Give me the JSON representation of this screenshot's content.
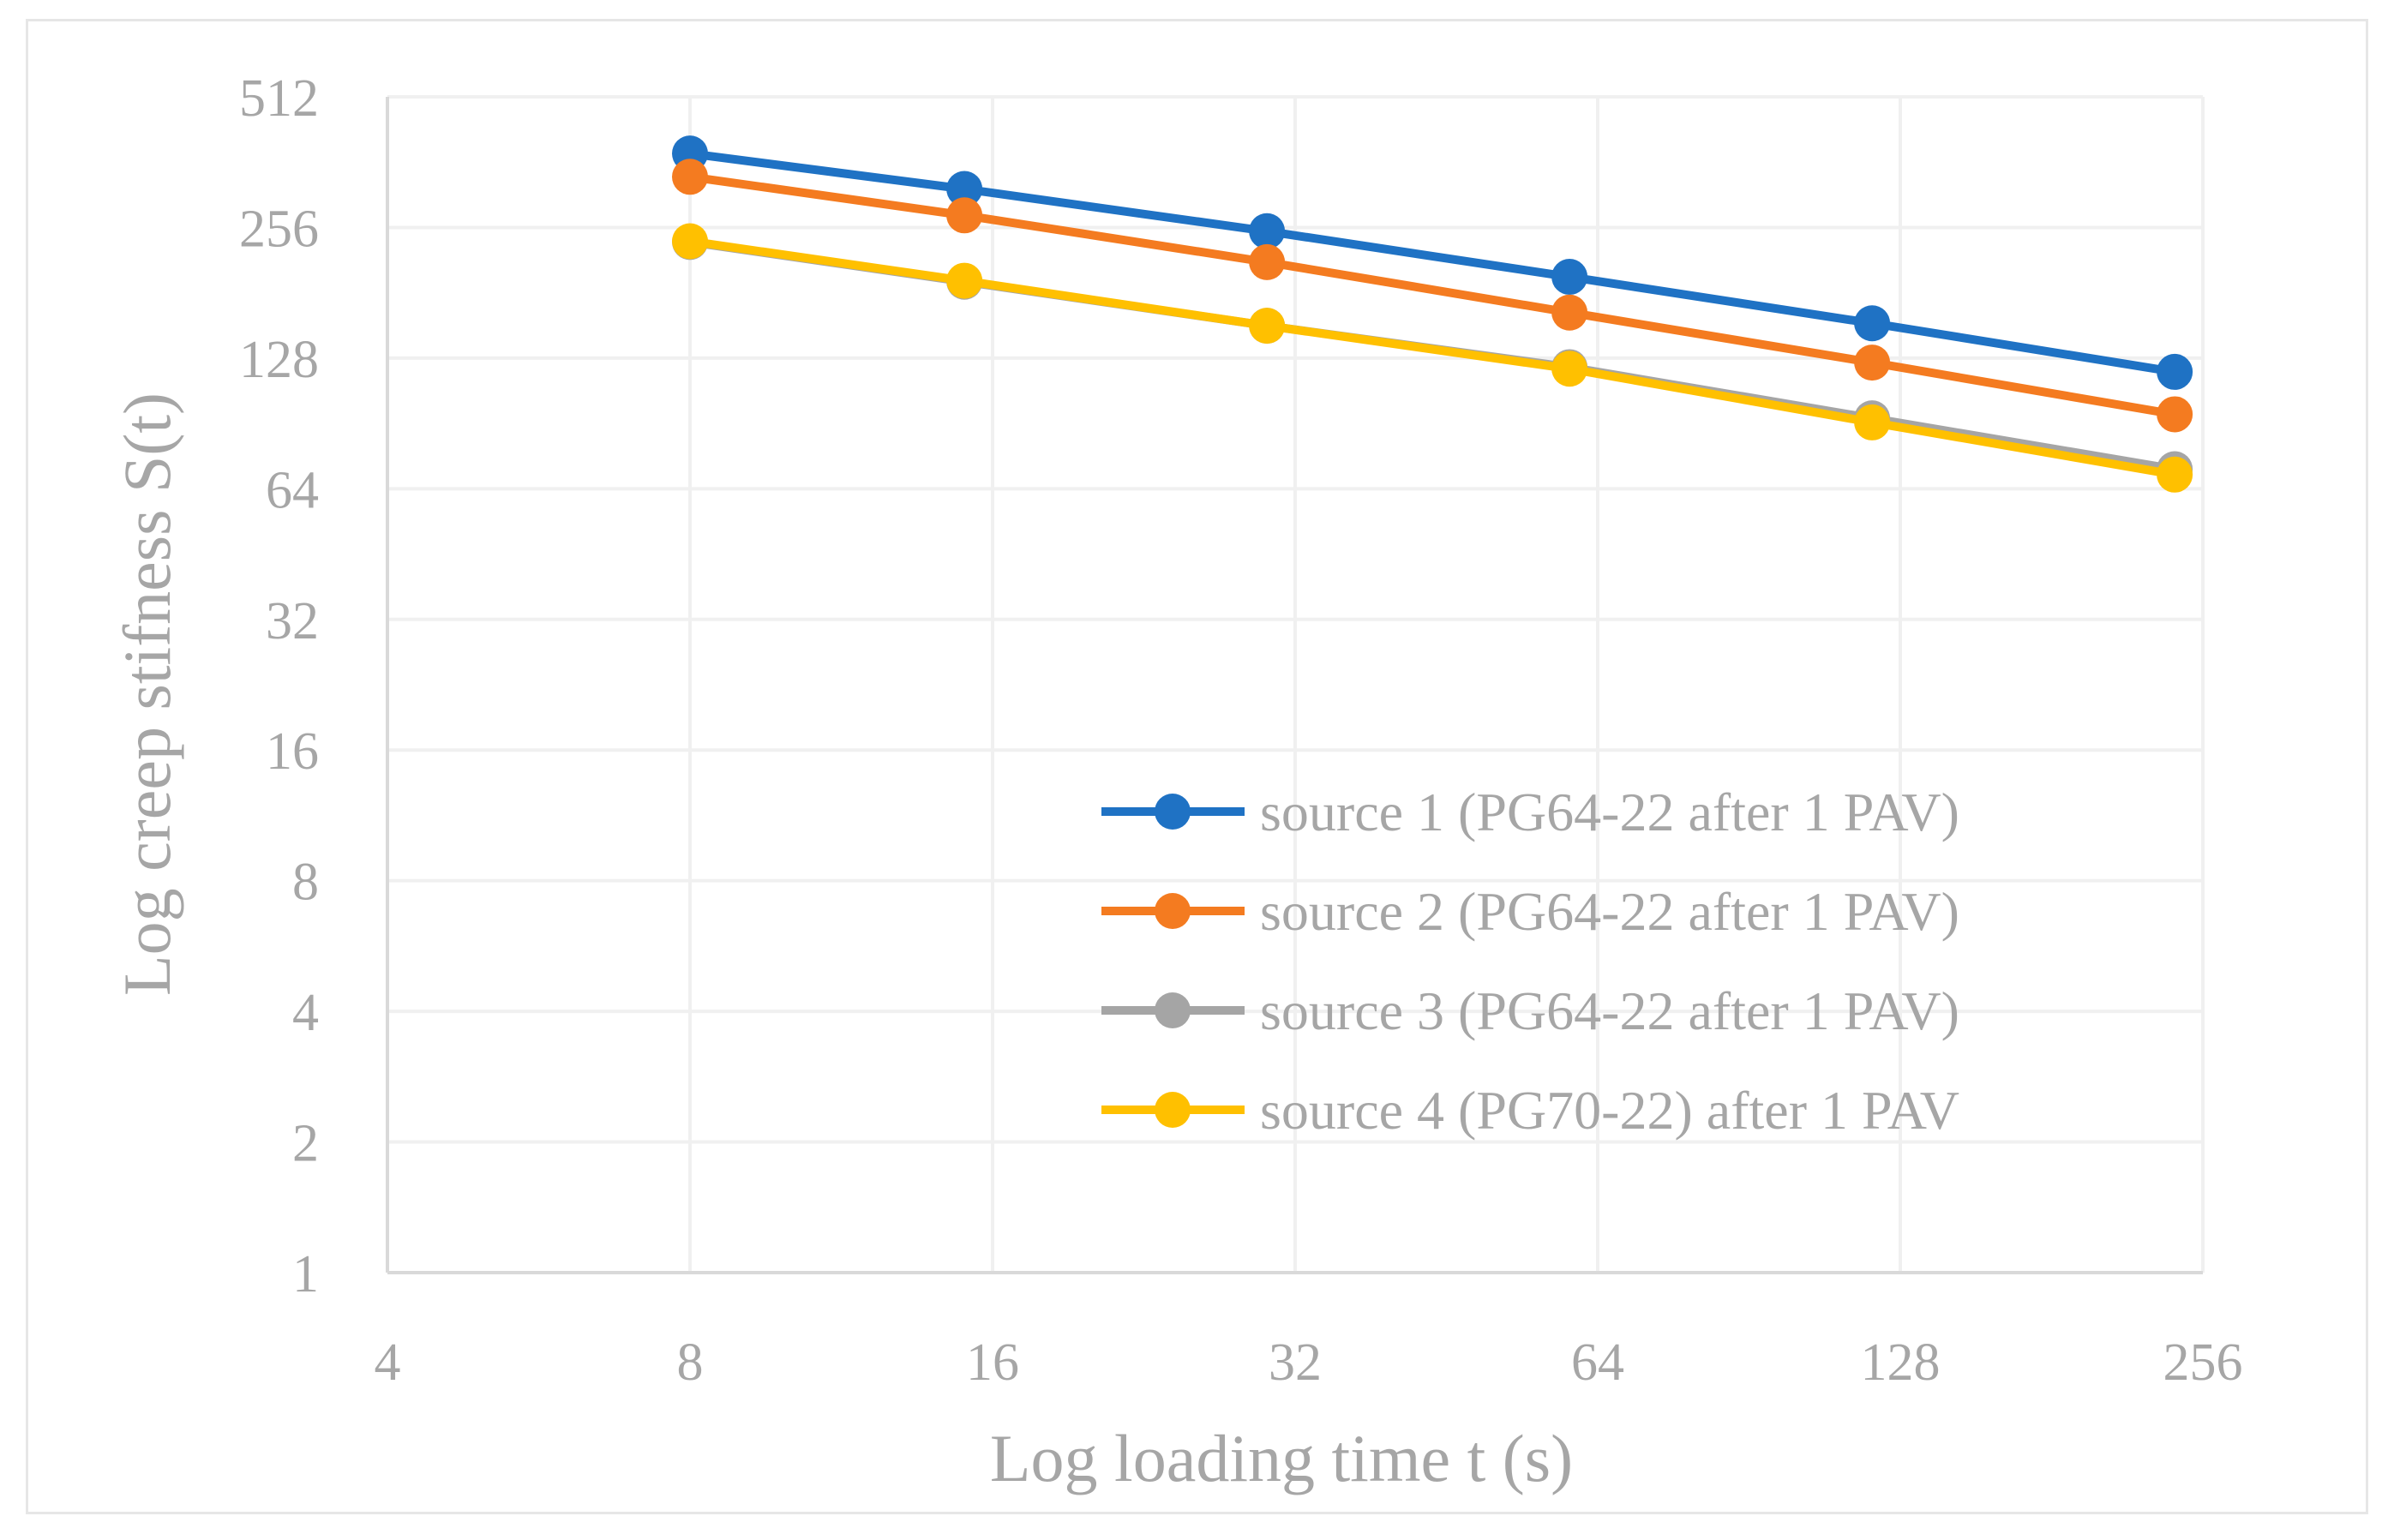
{
  "chart_data": {
    "type": "line",
    "xlabel": "Log loading time t (s)",
    "ylabel": "Log creep stifness S(t)",
    "x_scale": "log2",
    "y_scale": "log2",
    "xlim": [
      4,
      256
    ],
    "ylim": [
      1,
      512
    ],
    "x_ticks": [
      "4",
      "8",
      "16",
      "32",
      "64",
      "128",
      "256"
    ],
    "y_ticks": [
      "1",
      "2",
      "4",
      "8",
      "16",
      "32",
      "64",
      "128",
      "256",
      "512"
    ],
    "grid": true,
    "legend_position": "right-center",
    "x": [
      8,
      15,
      30,
      60,
      120,
      240
    ],
    "series": [
      {
        "name": "source 1 (PG64-22 after 1 PAV)",
        "color": "#1f72c4",
        "values": [
          379,
          314,
          251,
          197,
          154,
          119
        ]
      },
      {
        "name": "source 2 (PG64-22 after 1 PAV)",
        "color": "#f47b20",
        "values": [
          335,
          273,
          213,
          163,
          125,
          95
        ]
      },
      {
        "name": "source 3 (PG64-22 after 1 PAV)",
        "color": "#a5a5a5",
        "values": [
          237,
          192,
          152,
          122,
          93,
          71
        ]
      },
      {
        "name": "source 4 (PG70-22) after 1 PAV",
        "color": "#ffc000",
        "values": [
          238,
          193,
          152,
          121,
          91,
          69
        ]
      }
    ]
  }
}
